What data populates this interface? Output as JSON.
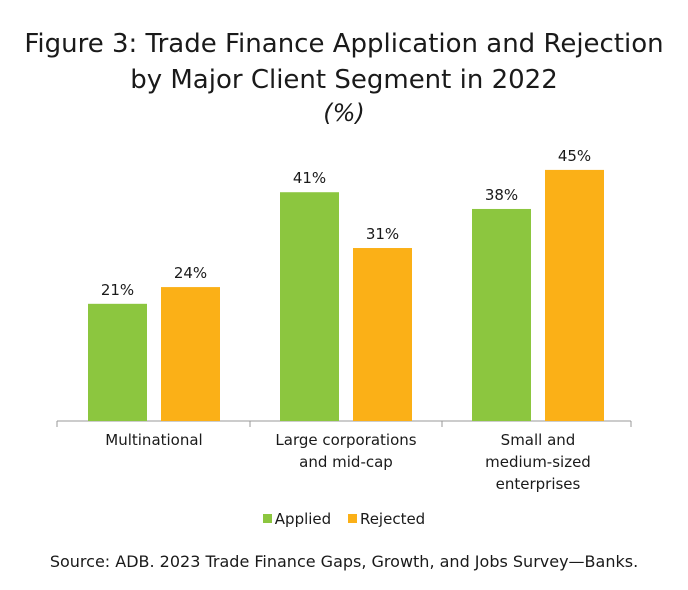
{
  "colors": {
    "applied": "#8cc63f",
    "rejected": "#fbb017",
    "axis": "#999999",
    "text": "#1a1a1a"
  },
  "chart_data": {
    "type": "bar",
    "title_lines": [
      "Figure 3: Trade Finance Application and Rejection",
      "by Major Client Segment in 2022"
    ],
    "unit": "(%)",
    "categories": [
      [
        "Multinational"
      ],
      [
        "Large corporations",
        "and mid-cap"
      ],
      [
        "Small and",
        "medium-sized",
        "enterprises"
      ]
    ],
    "series": [
      {
        "name": "Applied",
        "values": [
          21,
          41,
          38
        ],
        "labels": [
          "21%",
          "41%",
          "38%"
        ]
      },
      {
        "name": "Rejected",
        "values": [
          24,
          31,
          45
        ],
        "labels": [
          "24%",
          "31%",
          "45%"
        ]
      }
    ],
    "ylim": [
      0,
      50
    ],
    "grid": false,
    "legend_position": "bottom"
  },
  "source": "Source: ADB. 2023 Trade Finance Gaps, Growth, and Jobs Survey—Banks."
}
